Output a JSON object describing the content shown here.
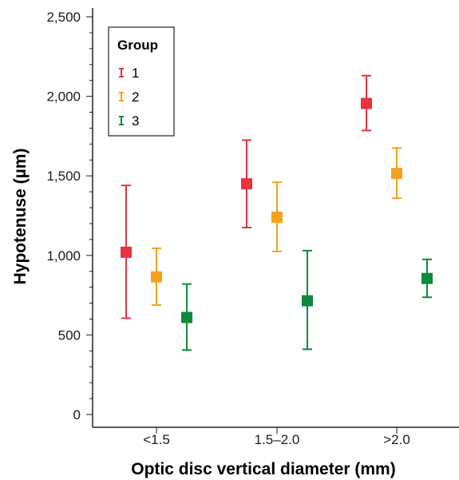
{
  "chart_data": {
    "type": "scatter",
    "subtype": "error-bar",
    "xlabel": "Optic disc vertical diameter (mm)",
    "ylabel": "Hypotenuse (µm)",
    "categories": [
      "<1.5",
      "1.5–2.0",
      ">2.0"
    ],
    "ylim": [
      0,
      2500
    ],
    "yticks": [
      0,
      500,
      1000,
      1500,
      2000,
      2500
    ],
    "ytick_labels": [
      "0",
      "500",
      "1,000",
      "1,500",
      "2,000",
      "2,500"
    ],
    "grid": false,
    "legend": {
      "title": "Group",
      "position": "top-left"
    },
    "series": [
      {
        "name": "1",
        "color": "#e8323f",
        "means": [
          1020,
          1450,
          1955
        ],
        "lower": [
          605,
          1175,
          1785
        ],
        "upper": [
          1440,
          1725,
          2130
        ]
      },
      {
        "name": "2",
        "color": "#f5a11c",
        "means": [
          865,
          1240,
          1515
        ],
        "lower": [
          688,
          1025,
          1360
        ],
        "upper": [
          1045,
          1460,
          1675
        ]
      },
      {
        "name": "3",
        "color": "#0f8a3c",
        "means": [
          610,
          715,
          855
        ],
        "lower": [
          405,
          410,
          737
        ],
        "upper": [
          820,
          1030,
          975
        ]
      }
    ]
  }
}
